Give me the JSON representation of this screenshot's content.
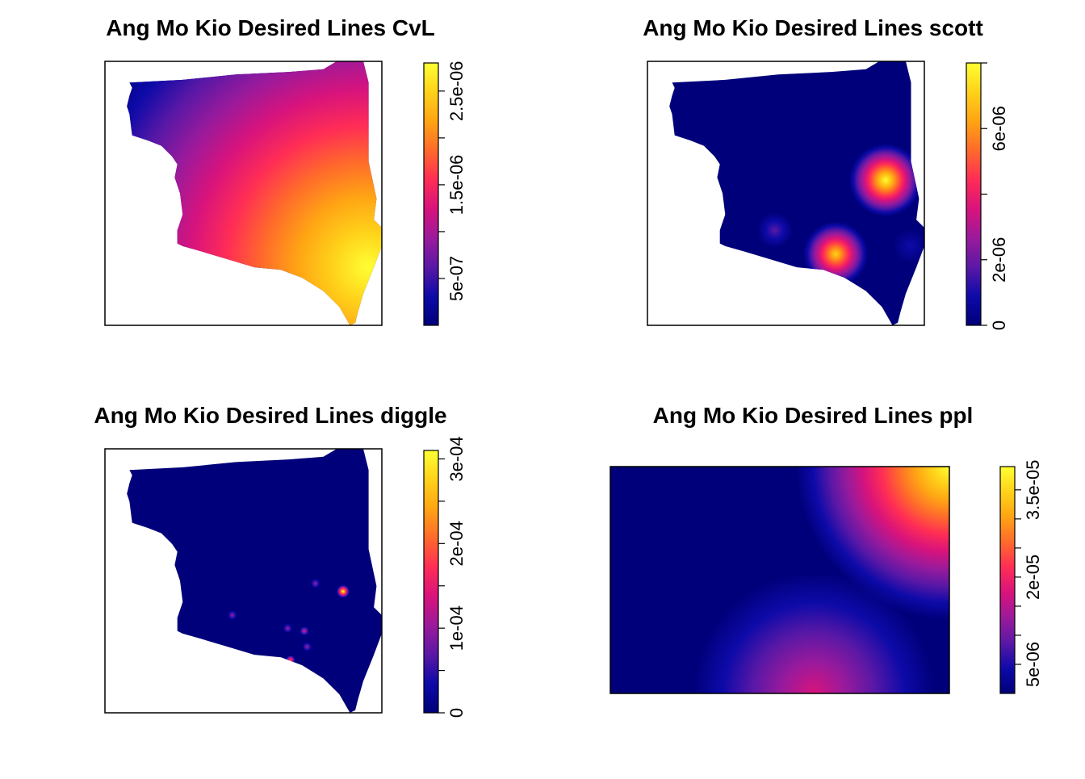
{
  "chart_data": [
    {
      "type": "heatmap",
      "title": "Ang Mo Kio Desired Lines CvL",
      "xlabel": "",
      "ylabel": "",
      "colorbar": {
        "range": [
          0,
          2.8e-06
        ],
        "ticks": [
          5e-07,
          1e-06,
          1.5e-06,
          2e-06,
          2.5e-06
        ],
        "labels": [
          "5e-07",
          "",
          "1.5e-06",
          "",
          "2.5e-06"
        ]
      },
      "hotspots": [
        {
          "x": 0.95,
          "y": 0.22,
          "level": 1.0
        }
      ],
      "shape": "region",
      "palette": [
        "#00007a",
        "#0d0aa8",
        "#5a18a6",
        "#9b1a9b",
        "#d8137c",
        "#ff2d55",
        "#ff6a2b",
        "#ffa414",
        "#ffd21a",
        "#ffff33"
      ]
    },
    {
      "type": "heatmap",
      "title": "Ang Mo Kio Desired Lines scott",
      "xlabel": "",
      "ylabel": "",
      "colorbar": {
        "range": [
          0,
          8e-06
        ],
        "ticks": [
          0,
          2e-06,
          4e-06,
          6e-06,
          8e-06
        ],
        "labels": [
          "0",
          "2e-06",
          "",
          "6e-06",
          ""
        ]
      },
      "hotspots": [
        {
          "x": 0.86,
          "y": 0.55,
          "level": 1.0
        },
        {
          "x": 0.68,
          "y": 0.27,
          "level": 0.85
        },
        {
          "x": 0.46,
          "y": 0.36,
          "level": 0.2
        },
        {
          "x": 0.95,
          "y": 0.3,
          "level": 0.15
        }
      ],
      "shape": "region",
      "palette": [
        "#00007a",
        "#0d0aa8",
        "#5a18a6",
        "#9b1a9b",
        "#d8137c",
        "#ff2d55",
        "#ff6a2b",
        "#ffa414",
        "#ffd21a",
        "#ffff33"
      ]
    },
    {
      "type": "heatmap",
      "title": "Ang Mo Kio Desired Lines diggle",
      "xlabel": "",
      "ylabel": "",
      "colorbar": {
        "range": [
          0,
          0.00031
        ],
        "ticks": [
          0,
          5e-05,
          0.0001,
          0.00015,
          0.0002,
          0.00025,
          0.0003
        ],
        "labels": [
          "0",
          "",
          "1e-04",
          "",
          "2e-04",
          "",
          "3e-04"
        ]
      },
      "hotspots": [
        {
          "x": 0.86,
          "y": 0.46,
          "level": 1.0
        },
        {
          "x": 0.67,
          "y": 0.2,
          "level": 0.65
        },
        {
          "x": 0.72,
          "y": 0.31,
          "level": 0.4
        },
        {
          "x": 0.76,
          "y": 0.49,
          "level": 0.3
        },
        {
          "x": 0.46,
          "y": 0.37,
          "level": 0.3
        },
        {
          "x": 0.66,
          "y": 0.32,
          "level": 0.3
        },
        {
          "x": 0.73,
          "y": 0.25,
          "level": 0.3
        }
      ],
      "shape": "region",
      "palette": [
        "#00007a",
        "#0d0aa8",
        "#5a18a6",
        "#9b1a9b",
        "#d8137c",
        "#ff2d55",
        "#ff6a2b",
        "#ffa414",
        "#ffd21a",
        "#ffff33"
      ]
    },
    {
      "type": "heatmap",
      "title": "Ang Mo Kio Desired Lines ppl",
      "xlabel": "",
      "ylabel": "",
      "colorbar": {
        "range": [
          0,
          3.9e-05
        ],
        "ticks": [
          5e-06,
          1e-05,
          1.5e-05,
          2e-05,
          2.5e-05,
          3e-05,
          3.5e-05
        ],
        "labels": [
          "5e-06",
          "",
          "",
          "2e-05",
          "",
          "",
          "3.5e-05"
        ]
      },
      "hotspots": [
        {
          "x": 1.0,
          "y": 1.0,
          "level": 1.0
        },
        {
          "x": 0.6,
          "y": 0.0,
          "level": 0.4
        }
      ],
      "shape": "rectangle",
      "palette": [
        "#00007a",
        "#0d0aa8",
        "#5a18a6",
        "#9b1a9b",
        "#d8137c",
        "#ff2d55",
        "#ff6a2b",
        "#ffa414",
        "#ffd21a",
        "#ffff33"
      ]
    }
  ]
}
